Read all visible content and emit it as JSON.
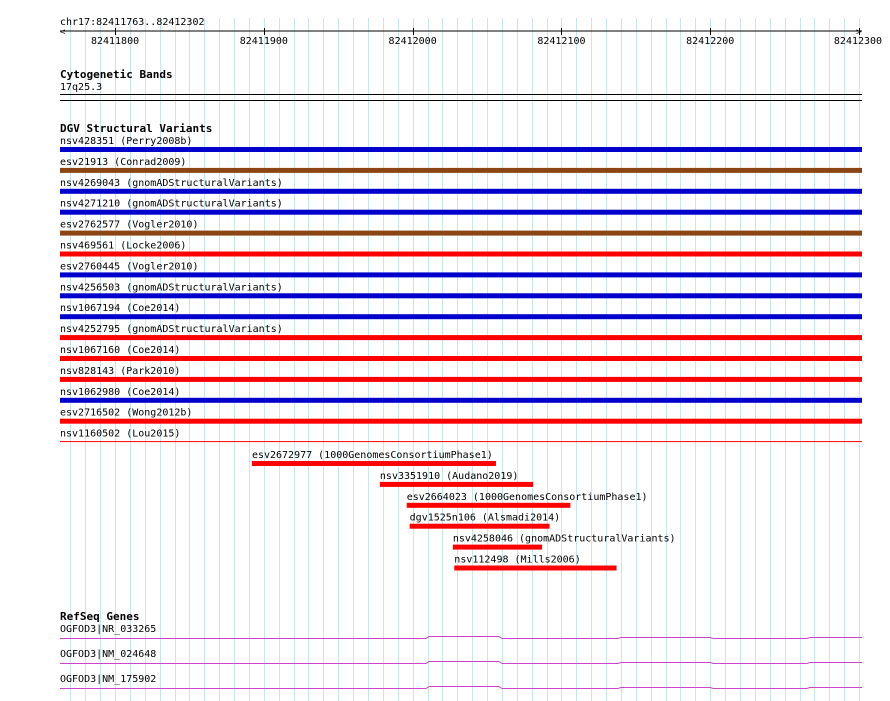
{
  "region": {
    "label": "chr17:82411763..82412302",
    "start": 82411763,
    "end": 82412302
  },
  "ruler": {
    "ticks": [
      82411800,
      82411900,
      82412000,
      82412100,
      82412200,
      82412300
    ],
    "minor_step": 10
  },
  "colors": {
    "grid": "#c8e6f0",
    "blue": "#0000cc",
    "brown": "#8b4513",
    "red": "#ff0000",
    "gene": "#cc44cc",
    "axis": "#000000"
  },
  "cytoband": {
    "title": "Cytogenetic Bands",
    "band": "17q25.3"
  },
  "dgv": {
    "title": "DGV Structural Variants",
    "full_width": [
      {
        "label": "nsv428351 (Perry2008b)",
        "color": "blue"
      },
      {
        "label": "esv21913 (Conrad2009)",
        "color": "brown"
      },
      {
        "label": "nsv4269043 (gnomADStructuralVariants)",
        "color": "blue"
      },
      {
        "label": "nsv4271210 (gnomADStructuralVariants)",
        "color": "blue"
      },
      {
        "label": "esv2762577 (Vogler2010)",
        "color": "brown"
      },
      {
        "label": "nsv469561 (Locke2006)",
        "color": "red"
      },
      {
        "label": "esv2760445 (Vogler2010)",
        "color": "blue"
      },
      {
        "label": "nsv4256503 (gnomADStructuralVariants)",
        "color": "blue"
      },
      {
        "label": "nsv1067194 (Coe2014)",
        "color": "blue"
      },
      {
        "label": "nsv4252795 (gnomADStructuralVariants)",
        "color": "red"
      },
      {
        "label": "nsv1067160 (Coe2014)",
        "color": "red"
      },
      {
        "label": "nsv828143 (Park2010)",
        "color": "red"
      },
      {
        "label": "nsv1062980 (Coe2014)",
        "color": "blue"
      },
      {
        "label": "esv2716502 (Wong2012b)",
        "color": "red"
      },
      {
        "label": "nsv1160502 (Lou2015)",
        "color": "red"
      }
    ],
    "partial": [
      {
        "label": "esv2672977 (1000GenomesConsortiumPhase1)",
        "start": 82411892,
        "end": 82412056,
        "color": "red"
      },
      {
        "label": "nsv3351910 (Audano2019)",
        "start": 82411978,
        "end": 82412081,
        "color": "red"
      },
      {
        "label": "esv2664023 (1000GenomesConsortiumPhase1)",
        "start": 82411996,
        "end": 82412106,
        "color": "red"
      },
      {
        "label": "dgv1525n106 (Alsmadi2014)",
        "start": 82411998,
        "end": 82412092,
        "color": "red"
      },
      {
        "label": "nsv4258046 (gnomADStructuralVariants)",
        "start": 82412027,
        "end": 82412087,
        "color": "red"
      },
      {
        "label": "nsv112498 (Mills2006)",
        "start": 82412028,
        "end": 82412137,
        "color": "red"
      }
    ]
  },
  "refseq": {
    "title": "RefSeq Genes",
    "genes": [
      {
        "label": "OGFOD3|NR_033265"
      },
      {
        "label": "OGFOD3|NM_024648"
      },
      {
        "label": "OGFOD3|NM_175902"
      }
    ],
    "bumps": [
      82412009,
      82412058,
      82412138,
      82412200,
      82412265
    ]
  }
}
